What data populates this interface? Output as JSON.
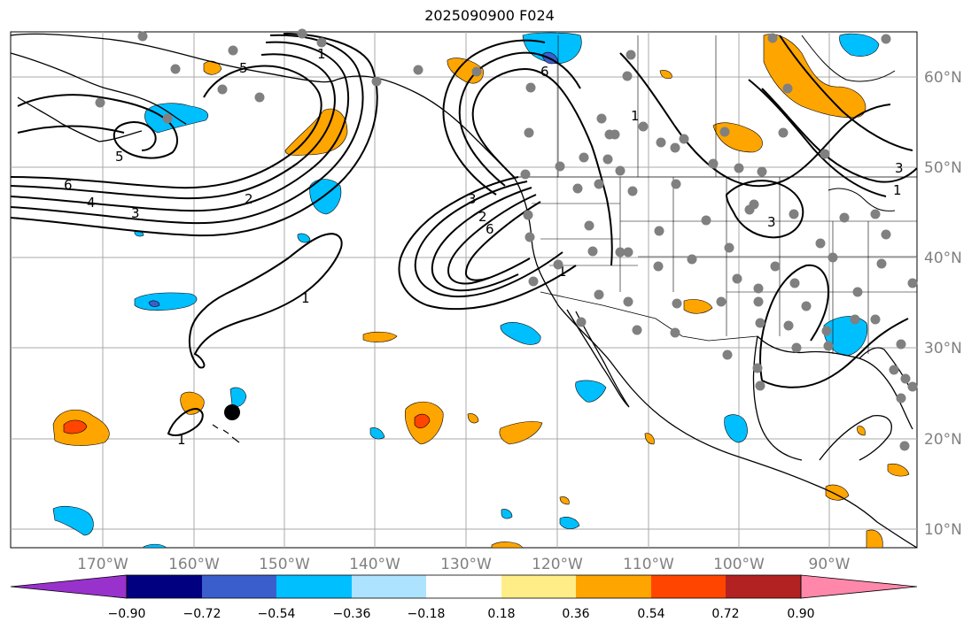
{
  "title": "2025090900 F024",
  "lon_labels": [
    "170°W",
    "160°W",
    "150°W",
    "140°W",
    "130°W",
    "120°W",
    "110°W",
    "100°W",
    "90°W"
  ],
  "lat_labels": [
    "60°N",
    "50°N",
    "40°N",
    "30°N",
    "20°N",
    "10°N"
  ],
  "colorbar": {
    "ticks": [
      "−0.90",
      "−0.72",
      "−0.54",
      "−0.36",
      "−0.18",
      "0.18",
      "0.36",
      "0.54",
      "0.72",
      "0.90"
    ],
    "colors": [
      "#9932CC",
      "#000080",
      "#3A5FCD",
      "#00BFFF",
      "#ADE3FF",
      "#FFFFFF",
      "#FFEE88",
      "#FFA500",
      "#FF4500",
      "#B22222",
      "#FF88AA"
    ]
  },
  "contour_labels": [
    "1",
    "5",
    "5",
    "6",
    "4",
    "3",
    "2",
    "1",
    "3",
    "2",
    "6",
    "6",
    "1",
    "1",
    "3",
    "1",
    "3",
    "1"
  ],
  "colors": {
    "contour": "#000000",
    "grid": "#aaaaaa",
    "stations": "#808080",
    "marker": "#000000"
  }
}
